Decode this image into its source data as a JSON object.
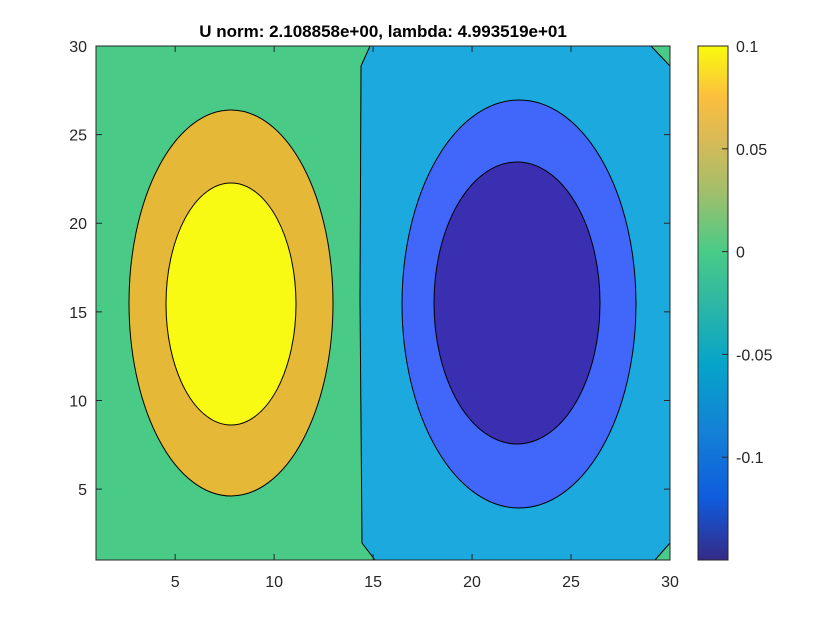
{
  "chart_data": {
    "type": "contour",
    "title": "U norm: 2.108858e+00, lambda: 4.993519e+01",
    "xlim": [
      1,
      30
    ],
    "ylim": [
      1,
      30
    ],
    "x_ticks": [
      "5",
      "10",
      "15",
      "20",
      "25",
      "30"
    ],
    "x_tick_values": [
      5,
      10,
      15,
      20,
      25,
      30
    ],
    "y_ticks": [
      "5",
      "10",
      "15",
      "20",
      "25",
      "30"
    ],
    "y_tick_values": [
      5,
      10,
      15,
      20,
      25,
      30
    ],
    "colorbar": {
      "range": [
        -0.15,
        0.1
      ],
      "ticks": [
        "0.1",
        "0.05",
        "0",
        "-0.05",
        "-0.1"
      ],
      "tick_values": [
        0.1,
        0.05,
        0,
        -0.05,
        -0.1
      ],
      "colormap": "parula"
    },
    "contour_levels": [
      {
        "level": "background",
        "color": "#49cb87"
      },
      {
        "level": "-0.05 to 0",
        "color": "#1ca9de"
      },
      {
        "level": "0.05 to 0.1",
        "color": "#e6b838"
      },
      {
        "level": "> 0.1",
        "color": "#f9fa14"
      },
      {
        "level": "-0.1 to -0.05",
        "color": "#4167fa"
      },
      {
        "level": "< -0.1",
        "color": "#3a2fb1"
      }
    ],
    "features": [
      {
        "name": "positive-lobe",
        "center": [
          8,
          15.5
        ],
        "outer": [
          [
            3,
            4.6
          ],
          [
            13,
            26.3
          ]
        ],
        "inner": [
          [
            5,
            8.7
          ],
          [
            11,
            22.3
          ]
        ]
      },
      {
        "name": "negative-lobe",
        "center": [
          22.3,
          15.5
        ],
        "outer": [
          [
            17.3,
            4
          ],
          [
            27.3,
            27
          ]
        ],
        "inner": [
          [
            18.5,
            7.5
          ],
          [
            26.5,
            23.5
          ]
        ]
      }
    ]
  }
}
